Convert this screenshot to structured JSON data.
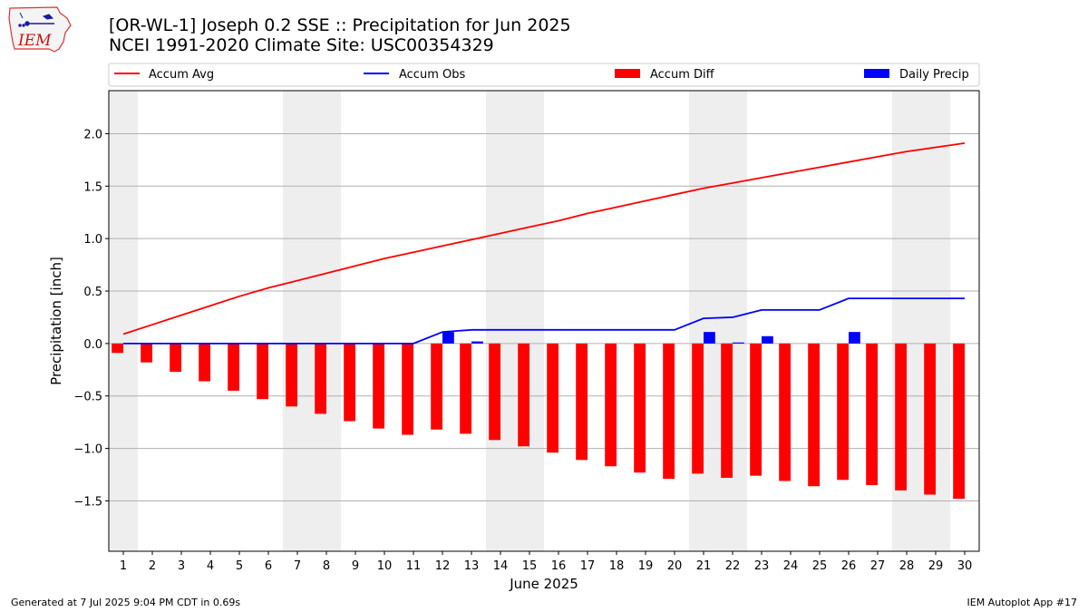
{
  "header": {
    "logo_text": "IEM",
    "title_line1": "[OR-WL-1] Joseph 0.2 SSE :: Precipitation for Jun 2025",
    "title_line2": "NCEI 1991-2020 Climate Site: USC00354329"
  },
  "footer": {
    "left": "Generated at 7 Jul 2025 9:04 PM CDT in 0.69s",
    "right": "IEM Autoplot App #17"
  },
  "colors": {
    "accum_avg": "#ff0000",
    "accum_obs": "#0000ff",
    "accum_diff": "#ff0000",
    "daily_precip": "#0000ff",
    "weekend_shade": "#eeeeee",
    "grid": "#b0b0b0"
  },
  "chart_data": {
    "type": "bar",
    "title": "[OR-WL-1] Joseph 0.2 SSE :: Precipitation for Jun 2025",
    "subtitle": "NCEI 1991-2020 Climate Site: USC00354329",
    "xlabel": "June 2025",
    "ylabel": "Precipitation [inch]",
    "x": [
      1,
      2,
      3,
      4,
      5,
      6,
      7,
      8,
      9,
      10,
      11,
      12,
      13,
      14,
      15,
      16,
      17,
      18,
      19,
      20,
      21,
      22,
      23,
      24,
      25,
      26,
      27,
      28,
      29,
      30
    ],
    "x_ticks": [
      "1",
      "2",
      "3",
      "4",
      "5",
      "6",
      "7",
      "8",
      "9",
      "10",
      "11",
      "12",
      "13",
      "14",
      "15",
      "16",
      "17",
      "18",
      "19",
      "20",
      "21",
      "22",
      "23",
      "24",
      "25",
      "26",
      "27",
      "28",
      "29",
      "30"
    ],
    "xlim": [
      0.5,
      30.5
    ],
    "ylim": [
      -1.98,
      2.41
    ],
    "y_ticks": [
      -1.5,
      -1.0,
      -0.5,
      0.0,
      0.5,
      1.0,
      1.5,
      2.0
    ],
    "y_tick_labels": [
      "−1.5",
      "−1.0",
      "−0.5",
      "0.0",
      "0.5",
      "1.0",
      "1.5",
      "2.0"
    ],
    "grid": "horizontal",
    "legend_position": "top",
    "weekend_shaded_days": [
      1,
      7,
      8,
      14,
      15,
      21,
      22,
      28,
      29
    ],
    "series": [
      {
        "name": "Accum Avg",
        "kind": "line",
        "color": "#ff0000",
        "values": [
          0.09,
          0.18,
          0.27,
          0.36,
          0.45,
          0.53,
          0.6,
          0.67,
          0.74,
          0.81,
          0.87,
          0.93,
          0.99,
          1.05,
          1.11,
          1.17,
          1.24,
          1.3,
          1.36,
          1.42,
          1.48,
          1.53,
          1.58,
          1.63,
          1.68,
          1.73,
          1.78,
          1.83,
          1.87,
          1.91
        ]
      },
      {
        "name": "Accum Obs",
        "kind": "line",
        "color": "#0000ff",
        "values": [
          0.0,
          0.0,
          0.0,
          0.0,
          0.0,
          0.0,
          0.0,
          0.0,
          0.0,
          0.0,
          0.0,
          0.11,
          0.13,
          0.13,
          0.13,
          0.13,
          0.13,
          0.13,
          0.13,
          0.13,
          0.24,
          0.25,
          0.32,
          0.32,
          0.32,
          0.43,
          0.43,
          0.43,
          0.43,
          0.43
        ]
      },
      {
        "name": "Accum Diff",
        "kind": "bar",
        "color": "#ff0000",
        "values": [
          -0.09,
          -0.18,
          -0.27,
          -0.36,
          -0.45,
          -0.53,
          -0.6,
          -0.67,
          -0.74,
          -0.81,
          -0.87,
          -0.82,
          -0.86,
          -0.92,
          -0.98,
          -1.04,
          -1.11,
          -1.17,
          -1.23,
          -1.29,
          -1.24,
          -1.28,
          -1.26,
          -1.31,
          -1.36,
          -1.3,
          -1.35,
          -1.4,
          -1.44,
          -1.48
        ]
      },
      {
        "name": "Daily Precip",
        "kind": "bar",
        "color": "#0000ff",
        "values": [
          0,
          0,
          0,
          0,
          0,
          0,
          0,
          0,
          0,
          0,
          0,
          0.11,
          0.02,
          0,
          0,
          0,
          0,
          0,
          0,
          0,
          0.11,
          0.01,
          0.07,
          0,
          0,
          0.11,
          0,
          0,
          0,
          0
        ]
      }
    ]
  }
}
